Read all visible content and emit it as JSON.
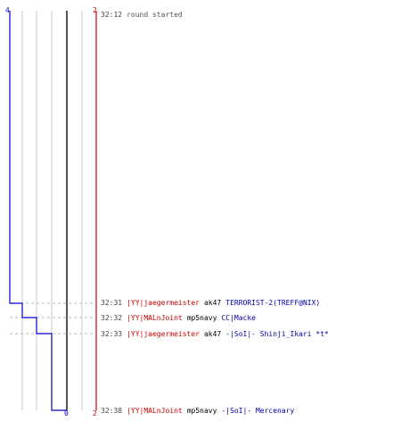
{
  "colors": {
    "team_a": "#0000cc",
    "team_b": "#cc0000",
    "killer_text": "#cc0000",
    "victim_text": "#0000aa",
    "grid": "#c8c8c8",
    "center": "#555555",
    "dashed": "#bbbbbb"
  },
  "axis": {
    "top_left": "4",
    "top_right": "2",
    "bottom_mid": "0",
    "bottom_right": "2"
  },
  "round_start": {
    "time": "32:12",
    "text": "round started"
  },
  "events": [
    {
      "time": "32:31",
      "killer": "|YY|jaegermeister",
      "weapon": "ak47",
      "victim": "TERRORIST-2(TREFF@NIX)"
    },
    {
      "time": "32:32",
      "killer": "|YY|MALnJoint",
      "weapon": "mp5navy",
      "victim": "CC|Macke"
    },
    {
      "time": "32:33",
      "killer": "|YY|jaegermeister",
      "weapon": "ak47",
      "victim": "-|SoI|- Shinji_Ikari *t*"
    },
    {
      "time": "32:38",
      "killer": "|YY|MALnJoint",
      "weapon": "mp5navy",
      "victim": "-|SoI|- Mercenary"
    }
  ],
  "chart_data": {
    "type": "line",
    "x": [
      "32:12",
      "32:31",
      "32:32",
      "32:33",
      "32:38"
    ],
    "series": [
      {
        "values": [
          4,
          3,
          2,
          1,
          0
        ]
      },
      {
        "values": [
          2,
          2,
          2,
          2,
          2
        ]
      }
    ]
  }
}
